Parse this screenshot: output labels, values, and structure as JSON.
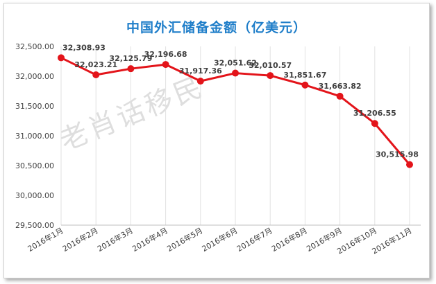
{
  "title": "中国外汇储备金额（亿美元）",
  "watermark": "老肖话移民",
  "chart_data": {
    "type": "line",
    "title": "中国外汇储备金额（亿美元）",
    "categories": [
      "2016年1月",
      "2016年2月",
      "2016年3月",
      "2016年4月",
      "2016年5月",
      "2016年6月",
      "2016年7月",
      "2016年8月",
      "2016年9月",
      "2016年10月",
      "2016年11月"
    ],
    "series": [
      {
        "values": [
          32308.93,
          32023.21,
          32125.79,
          32196.68,
          31917.36,
          32051.62,
          32010.57,
          31851.67,
          31663.82,
          31206.55,
          30515.98
        ],
        "labels": [
          "32,308.93",
          "32,023.21",
          "32,125.79",
          "32,196.68",
          "31,917.36",
          "32,051.62",
          "32,010.57",
          "31,851.67",
          "31,663.82",
          "31,206.55",
          "30,515.98"
        ]
      }
    ],
    "yticks": [
      "29,500.00",
      "30,000.00",
      "30,500.00",
      "31,000.00",
      "31,500.00",
      "32,000.00",
      "32,500.00"
    ],
    "ylim": [
      29500,
      32500
    ],
    "grid": "vertical",
    "line_color": "#e3141a",
    "title_color": "#1f7ec9"
  }
}
